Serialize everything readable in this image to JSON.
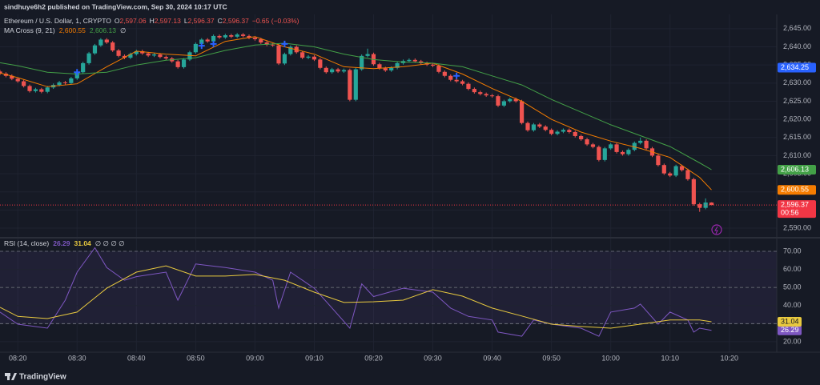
{
  "header": {
    "publisher": "sindhuye6h2 published on TradingView.com, Sep 30, 2024 10:17 UTC"
  },
  "footer": {
    "brand": "TradingView"
  },
  "chart_data": [
    {
      "type": "candlestick",
      "legend": {
        "title": "Ethereum / U.S. Dollar, 1, CRYPTO",
        "items": [
          {
            "label": "O",
            "value": "2,597.06"
          },
          {
            "label": "H",
            "value": "2,597.13"
          },
          {
            "label": "L",
            "value": "2,596.37"
          },
          {
            "label": "C",
            "value": "2,596.37"
          }
        ],
        "change": "−0.65 (−0.03%)"
      },
      "indicator_legend": {
        "title": "MA Cross (9, 21)",
        "values": [
          "2,600.55",
          "2,606.13"
        ],
        "extra": "∅"
      },
      "up_color": "#26a69a",
      "down_color": "#ef5350",
      "grid": true,
      "xlim": [
        "08:17",
        "10:28"
      ],
      "xticks": [
        "08:20",
        "08:30",
        "08:40",
        "08:50",
        "09:00",
        "09:10",
        "09:20",
        "09:30",
        "09:40",
        "09:50",
        "10:00",
        "10:10",
        "10:20"
      ],
      "ylim": [
        2587.8,
        2648.5
      ],
      "yticks": [
        {
          "value": 2590,
          "label": "2,590.00"
        },
        {
          "value": 2595,
          "label": "2,595.00"
        },
        {
          "value": 2600,
          "label": "2,600.00"
        },
        {
          "value": 2605,
          "label": "2,605.00"
        },
        {
          "value": 2610,
          "label": "2,610.00"
        },
        {
          "value": 2615,
          "label": "2,615.00"
        },
        {
          "value": 2620,
          "label": "2,620.00"
        },
        {
          "value": 2625,
          "label": "2,625.00"
        },
        {
          "value": 2630,
          "label": "2,630.00"
        },
        {
          "value": 2635,
          "label": "2,635.00"
        },
        {
          "value": 2640,
          "label": "2,640.00"
        },
        {
          "value": 2645,
          "label": "2,645.00"
        }
      ],
      "x": [
        "08:17",
        "08:18",
        "08:19",
        "08:20",
        "08:21",
        "08:22",
        "08:23",
        "08:24",
        "08:25",
        "08:26",
        "08:27",
        "08:28",
        "08:29",
        "08:30",
        "08:31",
        "08:32",
        "08:33",
        "08:34",
        "08:35",
        "08:36",
        "08:37",
        "08:38",
        "08:39",
        "08:40",
        "08:41",
        "08:42",
        "08:43",
        "08:44",
        "08:45",
        "08:46",
        "08:47",
        "08:48",
        "08:49",
        "08:50",
        "08:51",
        "08:52",
        "08:53",
        "08:54",
        "08:55",
        "08:56",
        "08:57",
        "08:58",
        "08:59",
        "09:00",
        "09:01",
        "09:02",
        "09:03",
        "09:04",
        "09:05",
        "09:06",
        "09:07",
        "09:08",
        "09:09",
        "09:10",
        "09:11",
        "09:12",
        "09:13",
        "09:14",
        "09:15",
        "09:16",
        "09:17",
        "09:18",
        "09:19",
        "09:20",
        "09:21",
        "09:22",
        "09:23",
        "09:24",
        "09:25",
        "09:26",
        "09:27",
        "09:28",
        "09:29",
        "09:30",
        "09:31",
        "09:32",
        "09:33",
        "09:34",
        "09:35",
        "09:36",
        "09:37",
        "09:38",
        "09:39",
        "09:40",
        "09:41",
        "09:42",
        "09:43",
        "09:44",
        "09:45",
        "09:46",
        "09:47",
        "09:48",
        "09:49",
        "09:50",
        "09:51",
        "09:52",
        "09:53",
        "09:54",
        "09:55",
        "09:56",
        "09:57",
        "09:58",
        "09:59",
        "10:00",
        "10:01",
        "10:02",
        "10:03",
        "10:04",
        "10:05",
        "10:06",
        "10:07",
        "10:08",
        "10:09",
        "10:10",
        "10:11",
        "10:12",
        "10:13",
        "10:14",
        "10:15",
        "10:16",
        "10:17"
      ],
      "open": [
        2633.2,
        2632.6,
        2632.0,
        2631.2,
        2630.5,
        2629.2,
        2627.8,
        2628.3,
        2627.6,
        2628.8,
        2629.5,
        2630.2,
        2630.0,
        2631.3,
        2633.0,
        2635.5,
        2638.2,
        2640.4,
        2642.0,
        2641.2,
        2639.0,
        2637.5,
        2637.0,
        2638.0,
        2638.8,
        2638.2,
        2637.6,
        2637.9,
        2637.2,
        2636.8,
        2636.0,
        2634.4,
        2636.5,
        2638.5,
        2640.8,
        2642.0,
        2641.5,
        2643.0,
        2642.6,
        2643.2,
        2642.8,
        2643.4,
        2643.0,
        2642.5,
        2642.1,
        2641.2,
        2640.6,
        2640.4,
        2635.4,
        2638.0,
        2640.0,
        2638.5,
        2637.0,
        2637.3,
        2636.5,
        2634.2,
        2633.0,
        2633.8,
        2633.2,
        2633.6,
        2625.4,
        2633.8,
        2637.5,
        2638.0,
        2635.2,
        2634.1,
        2633.5,
        2634.2,
        2635.5,
        2636.1,
        2636.4,
        2636.0,
        2635.5,
        2635.1,
        2634.8,
        2633.1,
        2632.0,
        2630.9,
        2630.5,
        2629.8,
        2628.4,
        2627.5,
        2627.0,
        2626.6,
        2626.4,
        2623.8,
        2625.0,
        2625.6,
        2625.0,
        2619.0,
        2617.0,
        2618.6,
        2618.0,
        2617.1,
        2616.0,
        2616.6,
        2617.1,
        2616.5,
        2615.4,
        2614.5,
        2613.1,
        2612.4,
        2608.8,
        2612.0,
        2613.1,
        2611.0,
        2610.4,
        2611.6,
        2613.5,
        2614.1,
        2612.0,
        2610.0,
        2607.4,
        2605.1,
        2604.5,
        2607.1,
        2606.0,
        2603.5,
        2596.6,
        2595.6,
        2597.06
      ],
      "high": [
        2633.6,
        2633.0,
        2632.4,
        2631.6,
        2630.9,
        2629.6,
        2628.7,
        2628.7,
        2629.2,
        2629.9,
        2630.6,
        2630.6,
        2631.7,
        2633.4,
        2635.9,
        2638.6,
        2640.8,
        2642.4,
        2642.4,
        2641.6,
        2639.4,
        2637.9,
        2638.4,
        2639.2,
        2639.2,
        2638.6,
        2638.3,
        2638.3,
        2637.6,
        2637.2,
        2636.4,
        2636.9,
        2638.9,
        2641.2,
        2642.4,
        2642.4,
        2643.4,
        2643.4,
        2643.6,
        2643.6,
        2643.8,
        2643.8,
        2643.4,
        2642.9,
        2642.5,
        2641.6,
        2641.0,
        2640.8,
        2638.4,
        2640.4,
        2640.4,
        2638.9,
        2637.7,
        2637.7,
        2636.9,
        2634.6,
        2634.2,
        2634.2,
        2634.0,
        2634.0,
        2634.2,
        2637.9,
        2639.5,
        2638.4,
        2635.6,
        2634.5,
        2634.6,
        2635.9,
        2636.5,
        2636.8,
        2636.8,
        2636.4,
        2635.9,
        2635.5,
        2635.2,
        2633.5,
        2632.4,
        2631.3,
        2630.9,
        2630.2,
        2628.8,
        2627.9,
        2627.4,
        2627.0,
        2626.8,
        2625.4,
        2626.0,
        2626.0,
        2625.4,
        2619.4,
        2619.0,
        2619.0,
        2618.4,
        2617.5,
        2617.0,
        2617.5,
        2617.5,
        2616.9,
        2615.8,
        2614.9,
        2613.5,
        2612.8,
        2612.4,
        2613.5,
        2613.5,
        2611.4,
        2612.0,
        2613.9,
        2615.0,
        2614.5,
        2612.4,
        2610.4,
        2607.8,
        2605.5,
        2607.5,
        2607.5,
        2606.4,
        2603.9,
        2597.0,
        2598.2,
        2597.13
      ],
      "low": [
        2632.2,
        2631.6,
        2630.8,
        2630.1,
        2628.8,
        2627.4,
        2627.4,
        2627.2,
        2627.2,
        2628.4,
        2629.1,
        2629.6,
        2629.6,
        2630.9,
        2632.6,
        2635.1,
        2637.8,
        2640.0,
        2640.8,
        2638.6,
        2637.1,
        2636.6,
        2636.6,
        2637.6,
        2637.8,
        2637.2,
        2637.2,
        2636.8,
        2636.4,
        2635.6,
        2634.0,
        2634.0,
        2636.1,
        2638.1,
        2640.4,
        2641.1,
        2641.1,
        2642.2,
        2642.2,
        2642.4,
        2642.4,
        2642.6,
        2642.1,
        2641.7,
        2640.8,
        2640.2,
        2640.0,
        2635.0,
        2635.0,
        2637.6,
        2638.1,
        2636.6,
        2636.6,
        2636.1,
        2633.8,
        2632.6,
        2632.6,
        2632.8,
        2632.8,
        2625.0,
        2625.0,
        2633.4,
        2637.1,
        2634.8,
        2633.7,
        2633.1,
        2633.1,
        2633.8,
        2635.1,
        2635.7,
        2635.6,
        2635.1,
        2634.7,
        2634.4,
        2632.7,
        2631.6,
        2630.5,
        2630.1,
        2629.4,
        2628.0,
        2627.1,
        2626.6,
        2626.2,
        2626.0,
        2623.4,
        2623.4,
        2624.6,
        2624.6,
        2618.6,
        2616.6,
        2616.6,
        2617.6,
        2616.7,
        2615.6,
        2615.6,
        2616.2,
        2616.1,
        2615.0,
        2614.1,
        2612.7,
        2612.0,
        2608.4,
        2608.4,
        2611.6,
        2610.6,
        2610.0,
        2610.0,
        2611.2,
        2613.1,
        2611.6,
        2609.6,
        2607.0,
        2604.7,
        2604.1,
        2604.1,
        2605.6,
        2603.1,
        2596.2,
        2594.5,
        2595.2,
        2596.37
      ],
      "close": [
        2632.6,
        2632.0,
        2631.2,
        2630.5,
        2629.2,
        2627.8,
        2628.3,
        2627.6,
        2628.8,
        2629.5,
        2630.2,
        2630.0,
        2631.3,
        2633.0,
        2635.5,
        2638.2,
        2640.4,
        2642.0,
        2641.2,
        2639.0,
        2637.5,
        2637.0,
        2638.0,
        2638.8,
        2638.2,
        2637.6,
        2637.9,
        2637.2,
        2636.8,
        2636.0,
        2634.4,
        2636.5,
        2638.5,
        2640.8,
        2642.0,
        2641.5,
        2643.0,
        2642.6,
        2643.2,
        2642.8,
        2643.4,
        2643.0,
        2642.5,
        2642.1,
        2641.2,
        2640.6,
        2640.4,
        2635.4,
        2638.0,
        2640.0,
        2638.5,
        2637.0,
        2637.3,
        2636.5,
        2634.2,
        2633.0,
        2633.8,
        2633.2,
        2633.6,
        2625.4,
        2633.8,
        2637.5,
        2638.0,
        2635.2,
        2634.1,
        2633.5,
        2634.2,
        2635.5,
        2636.1,
        2636.4,
        2636.0,
        2635.5,
        2635.1,
        2634.8,
        2633.1,
        2632.0,
        2630.9,
        2630.5,
        2629.8,
        2628.4,
        2627.5,
        2627.0,
        2626.6,
        2626.4,
        2623.8,
        2625.0,
        2625.6,
        2625.0,
        2619.0,
        2617.0,
        2618.6,
        2618.0,
        2617.1,
        2616.0,
        2616.6,
        2617.1,
        2616.5,
        2615.4,
        2614.5,
        2613.1,
        2612.4,
        2608.8,
        2612.0,
        2613.1,
        2611.0,
        2610.4,
        2611.6,
        2613.5,
        2614.1,
        2612.0,
        2610.0,
        2607.4,
        2605.1,
        2604.5,
        2607.1,
        2606.0,
        2603.5,
        2596.6,
        2595.6,
        2597.06,
        2596.37
      ],
      "overlays": [
        {
          "color": "#f57c00",
          "x": [
            "08:17",
            "08:20",
            "08:25",
            "08:30",
            "08:35",
            "08:40",
            "08:45",
            "08:50",
            "08:55",
            "09:00",
            "09:05",
            "09:10",
            "09:15",
            "09:20",
            "09:25",
            "09:30",
            "09:35",
            "09:40",
            "09:45",
            "09:50",
            "09:55",
            "10:00",
            "10:05",
            "10:10",
            "10:15",
            "10:17"
          ],
          "values": [
            2632.8,
            2631.5,
            2629.0,
            2629.8,
            2634.5,
            2638.8,
            2638.0,
            2637.5,
            2641.5,
            2642.8,
            2640.0,
            2638.0,
            2634.5,
            2634.0,
            2634.5,
            2635.5,
            2632.5,
            2628.5,
            2625.0,
            2620.0,
            2616.5,
            2614.0,
            2612.0,
            2609.5,
            2604.0,
            2600.55
          ]
        },
        {
          "color": "#43a047",
          "x": [
            "08:17",
            "08:20",
            "08:25",
            "08:30",
            "08:35",
            "08:40",
            "08:45",
            "08:50",
            "08:55",
            "09:00",
            "09:05",
            "09:10",
            "09:15",
            "09:20",
            "09:25",
            "09:30",
            "09:35",
            "09:40",
            "09:45",
            "09:50",
            "09:55",
            "10:00",
            "10:05",
            "10:10",
            "10:15",
            "10:17"
          ],
          "values": [
            2635.6,
            2634.8,
            2633.0,
            2632.5,
            2633.0,
            2635.0,
            2636.3,
            2637.0,
            2639.0,
            2640.5,
            2641.0,
            2640.0,
            2638.0,
            2636.5,
            2635.8,
            2635.5,
            2634.5,
            2632.0,
            2629.5,
            2625.5,
            2622.0,
            2618.5,
            2615.5,
            2612.5,
            2608.0,
            2606.13
          ]
        }
      ],
      "crosses": {
        "color": "#2962ff",
        "x": [
          "08:30",
          "08:51",
          "08:53",
          "09:05",
          "09:34"
        ],
        "values": [
          2633.0,
          2640.3,
          2640.8,
          2640.8,
          2632.0
        ]
      },
      "price_labels": [
        {
          "value": 2634.25,
          "label": "2,634.25",
          "color": "#2962ff",
          "text_color": "#ffffff"
        },
        {
          "value": 2606.13,
          "label": "2,606.13",
          "color": "#43a047",
          "text_color": "#ffffff"
        },
        {
          "value": 2600.55,
          "label": "2,600.55",
          "color": "#f57c00",
          "text_color": "#ffffff"
        },
        {
          "value": 2596.37,
          "label": "2,596.37",
          "color": "#f23645",
          "text_color": "#ffffff",
          "countdown": "00:56",
          "dotted_line": true
        }
      ]
    },
    {
      "type": "line",
      "legend": {
        "title": "RSI (14, close)",
        "extra": "∅ ∅ ∅ ∅"
      },
      "ylim": [
        14.2,
        76.2
      ],
      "yticks": [
        {
          "value": 20,
          "label": "20.00"
        },
        {
          "value": 30,
          "label": "30.00"
        },
        {
          "value": 40,
          "label": "40.00"
        },
        {
          "value": 50,
          "label": "50.00"
        },
        {
          "value": 60,
          "label": "60.00"
        },
        {
          "value": 70,
          "label": "70.00"
        }
      ],
      "band": [
        30,
        70
      ],
      "band_color": "#7e57c2",
      "dashed_levels": [
        70,
        50,
        30
      ],
      "series": [
        {
          "color": "#7e57c2",
          "x": [
            "08:17",
            "08:20",
            "08:25",
            "08:28",
            "08:30",
            "08:33",
            "08:35",
            "08:38",
            "08:40",
            "08:45",
            "08:47",
            "08:50",
            "08:55",
            "09:00",
            "09:03",
            "09:04",
            "09:06",
            "09:10",
            "09:13",
            "09:16",
            "09:18",
            "09:20",
            "09:25",
            "09:30",
            "09:33",
            "09:36",
            "09:40",
            "09:41",
            "09:45",
            "09:47",
            "09:50",
            "09:55",
            "09:58",
            "10:00",
            "10:04",
            "10:05",
            "10:08",
            "10:10",
            "10:13",
            "10:14",
            "10:15",
            "10:17"
          ],
          "values": [
            36.4,
            29.7,
            27.5,
            43.0,
            58.5,
            72.0,
            61.0,
            54.0,
            56.0,
            58.5,
            43.0,
            63.0,
            61.0,
            58.5,
            54.0,
            38.6,
            58.5,
            49.6,
            38.6,
            27.5,
            52.0,
            45.0,
            49.6,
            47.4,
            38.6,
            34.0,
            32.0,
            25.3,
            23.0,
            32.0,
            29.7,
            27.5,
            23.0,
            36.4,
            38.6,
            40.8,
            29.7,
            36.4,
            32.0,
            25.3,
            27.5,
            26.29
          ],
          "value_label": "26.29",
          "badge_text_color": "#ffffff"
        },
        {
          "color": "#e8c93f",
          "x": [
            "08:17",
            "08:20",
            "08:25",
            "08:30",
            "08:35",
            "08:40",
            "08:45",
            "08:50",
            "08:55",
            "09:00",
            "09:05",
            "09:10",
            "09:15",
            "09:20",
            "09:25",
            "09:30",
            "09:35",
            "09:40",
            "09:45",
            "09:50",
            "09:55",
            "10:00",
            "10:05",
            "10:10",
            "10:15",
            "10:17"
          ],
          "values": [
            39.0,
            34.0,
            32.8,
            36.4,
            49.6,
            58.5,
            62.0,
            56.3,
            56.3,
            57.2,
            54.0,
            47.4,
            41.7,
            42.1,
            43.0,
            48.8,
            45.2,
            38.6,
            34.2,
            29.7,
            28.4,
            27.5,
            29.7,
            32.0,
            32.0,
            31.04
          ],
          "value_label": "31.04",
          "badge_text_color": "#131722"
        }
      ]
    }
  ]
}
